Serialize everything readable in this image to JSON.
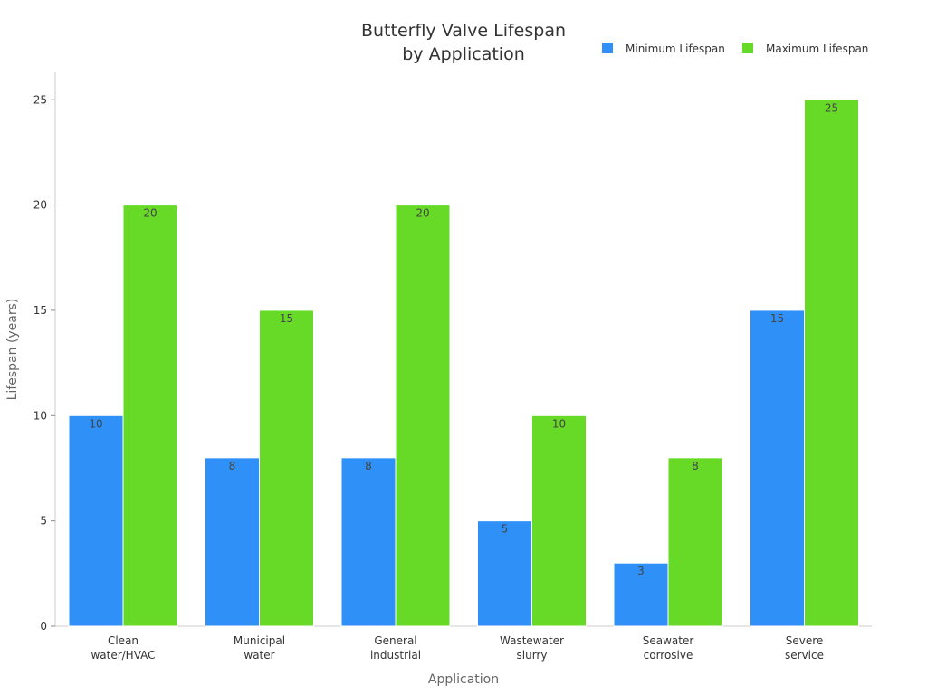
{
  "chart_data": {
    "type": "bar",
    "title_lines": [
      "Butterfly Valve Lifespan",
      "by Application"
    ],
    "xlabel": "Application",
    "ylabel": "Lifespan (years)",
    "categories": [
      [
        "Clean",
        "water/HVAC"
      ],
      [
        "Municipal",
        "water"
      ],
      [
        "General",
        "industrial"
      ],
      [
        "Wastewater",
        "slurry"
      ],
      [
        "Seawater",
        "corrosive"
      ],
      [
        "Severe",
        "service"
      ]
    ],
    "series": [
      {
        "name": "Minimum Lifespan",
        "color": "#2f91f8",
        "values": [
          10,
          8,
          8,
          5,
          3,
          15
        ]
      },
      {
        "name": "Maximum Lifespan",
        "color": "#67da28",
        "values": [
          20,
          15,
          20,
          10,
          8,
          25
        ]
      }
    ],
    "ylim": [
      0,
      26.3
    ],
    "yticks": [
      0,
      5,
      10,
      15,
      20,
      25
    ],
    "grid": false,
    "legend": "top-right",
    "data_labels": true
  }
}
